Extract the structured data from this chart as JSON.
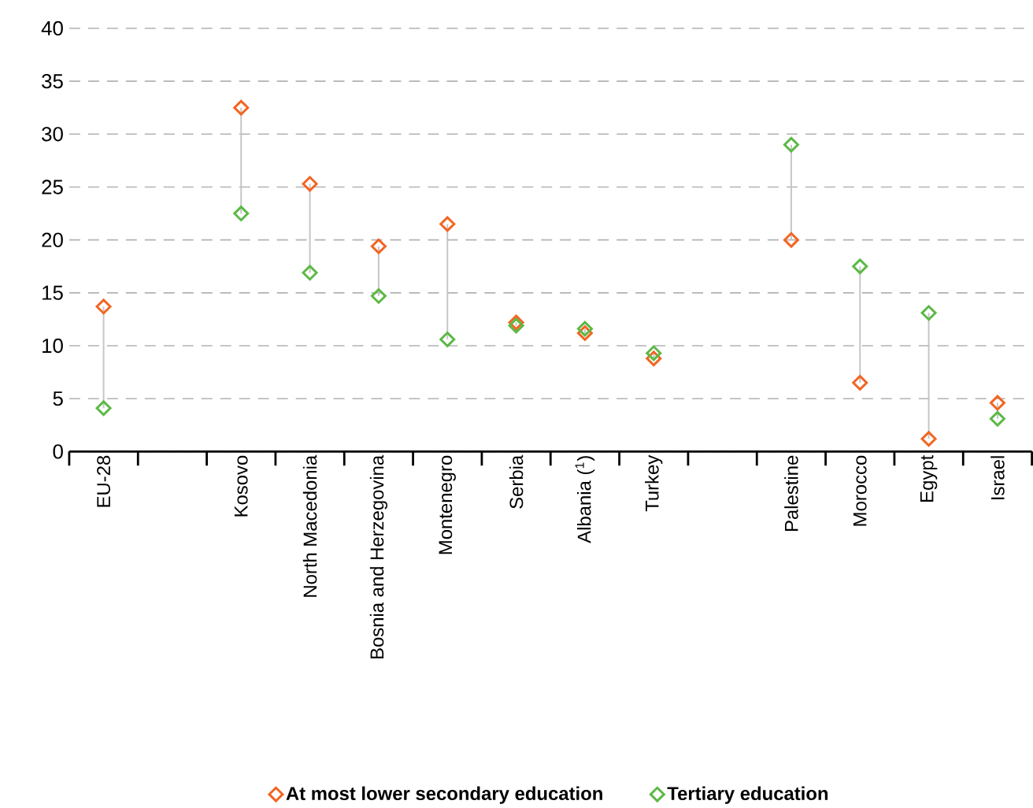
{
  "chart_data": {
    "type": "scatter",
    "categories": [
      "EU-28",
      null,
      "Kosovo",
      "North Macedonia",
      "Bosnia and Herzegovina",
      "Montenegro",
      "Serbia",
      "Albania ($^{1}$)",
      "Turkey",
      null,
      "Palestine",
      "Morocco",
      "Egypt",
      "Israel"
    ],
    "series": [
      {
        "name": "At most lower secondary education",
        "color": "#f26522",
        "values": [
          13.7,
          null,
          32.5,
          25.3,
          19.4,
          21.5,
          12.2,
          11.2,
          8.8,
          null,
          20.0,
          6.5,
          1.2,
          4.6
        ]
      },
      {
        "name": "Tertiary education",
        "color": "#5cb946",
        "values": [
          4.1,
          null,
          22.5,
          16.9,
          14.7,
          10.6,
          11.9,
          11.6,
          9.3,
          null,
          29.0,
          17.5,
          13.1,
          3.1
        ]
      }
    ],
    "ylim": [
      0,
      40
    ],
    "yticks": [
      0,
      5,
      10,
      15,
      20,
      25,
      30,
      35,
      40
    ],
    "grid": "y",
    "legend": "bottom",
    "marker": "diamond"
  }
}
